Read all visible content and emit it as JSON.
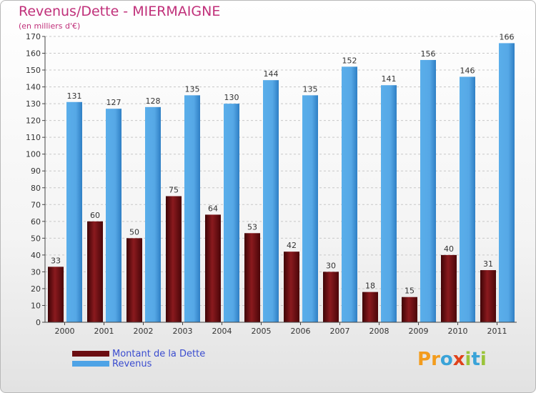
{
  "title": "Revenus/Dette - MIERMAIGNE",
  "subtitle": "(en milliers d'€)",
  "colors": {
    "title": "#c0307a",
    "debt": "#6b0c10",
    "revenue": "#4ea3e6",
    "legend_text": "#3a4ccf"
  },
  "legend": {
    "debt_label": "Montant de la Dette",
    "revenue_label": "Revenus"
  },
  "logo": {
    "text": "Proxiti",
    "letters": [
      "P",
      "r",
      "o",
      "x",
      "i",
      "t",
      "i"
    ],
    "colors": [
      "#f39c1d",
      "#f39c1d",
      "#3aa3d8",
      "#e0421b",
      "#9bc43a",
      "#3aa3d8",
      "#9bc43a"
    ]
  },
  "chart_data": {
    "type": "bar",
    "title": "Revenus/Dette - MIERMAIGNE",
    "ylabel": "(en milliers d'€)",
    "xlabel": "",
    "ylim": [
      0,
      170
    ],
    "ytick_step": 10,
    "grid": true,
    "legend_position": "bottom-left",
    "categories": [
      "2000",
      "2001",
      "2002",
      "2003",
      "2004",
      "2005",
      "2006",
      "2007",
      "2008",
      "2009",
      "2010",
      "2011"
    ],
    "series": [
      {
        "name": "Montant de la Dette",
        "values": [
          33,
          60,
          50,
          75,
          64,
          53,
          42,
          30,
          18,
          15,
          40,
          31
        ]
      },
      {
        "name": "Revenus",
        "values": [
          131,
          127,
          128,
          135,
          130,
          144,
          135,
          152,
          141,
          156,
          146,
          166
        ]
      }
    ]
  }
}
